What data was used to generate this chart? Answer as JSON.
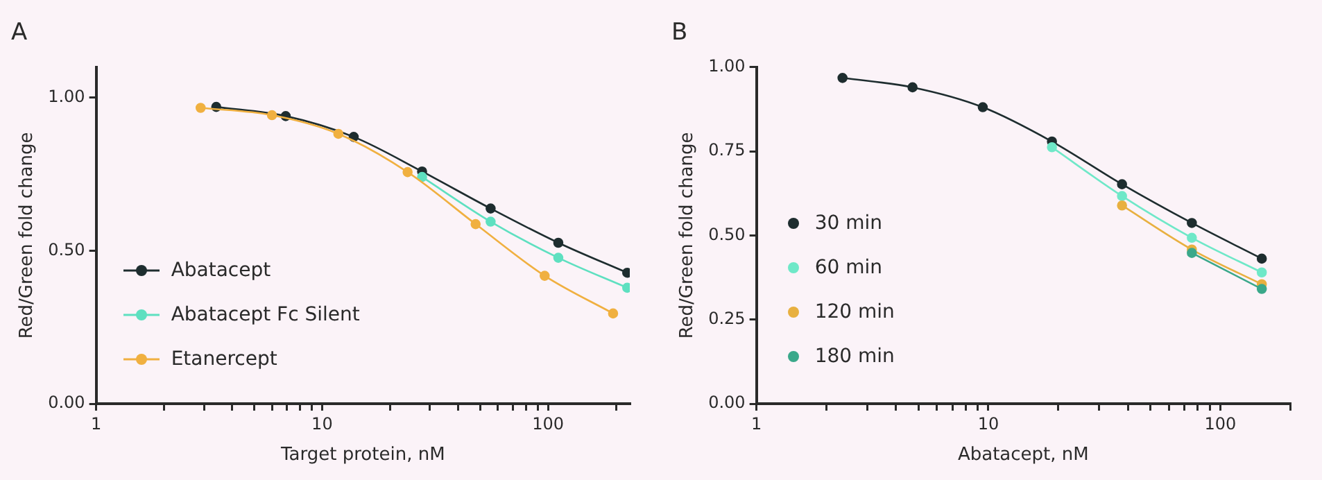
{
  "chart_data": [
    {
      "type": "line",
      "title": "A",
      "xlabel": "Target protein, nM",
      "ylabel": "Red/Green fold change",
      "log": "x",
      "x": [
        3.4,
        6.9,
        13.8,
        27.7,
        55.7,
        111,
        224
      ],
      "xlim": [
        1,
        230
      ],
      "xticks": [
        1,
        {
          "value": 2,
          "label": null
        },
        {
          "value": 3,
          "label": null
        },
        {
          "value": 4,
          "label": null
        },
        {
          "value": 5,
          "label": null
        },
        {
          "value": 6,
          "label": null
        },
        {
          "value": 7,
          "label": null
        },
        {
          "value": 8,
          "label": null
        },
        {
          "value": 9,
          "label": null
        },
        10,
        {
          "value": 20,
          "label": null
        },
        {
          "value": 30,
          "label": null
        },
        {
          "value": 40,
          "label": null
        },
        {
          "value": 50,
          "label": null
        },
        {
          "value": 60,
          "label": null
        },
        {
          "value": 70,
          "label": null
        },
        {
          "value": 80,
          "label": null
        },
        {
          "value": 90,
          "label": null
        },
        100,
        {
          "value": 200,
          "label": null
        }
      ],
      "ylim": [
        0,
        1.1
      ],
      "yticks": [
        {
          "value": 0,
          "label": "0.00"
        },
        {
          "value": 0.5,
          "label": "0.50"
        },
        {
          "value": 1,
          "label": "1.00"
        }
      ],
      "grid": false,
      "legend": "bottom left",
      "marker": "circle",
      "line_style": "solid",
      "series": [
        {
          "name": "Abatacept",
          "color": "#1e2d2f",
          "values": [
            0.97,
            0.94,
            0.872,
            0.759,
            0.638,
            0.526,
            0.428
          ]
        },
        {
          "name": "Abatacept Fc Silent",
          "color": "#5ee0c0",
          "values": [
            null,
            null,
            null,
            0.741,
            0.595,
            0.477,
            0.379
          ]
        },
        {
          "name": "Etanercept",
          "color": "#f0b040",
          "x": [
            2.9,
            6,
            11.8,
            23.9,
            47.8,
            96.6,
            194
          ],
          "values": [
            0.967,
            0.943,
            0.882,
            0.757,
            0.587,
            0.418,
            0.295
          ]
        }
      ]
    },
    {
      "type": "line",
      "title": "B",
      "xlabel": "Abatacept, nM",
      "ylabel": "Red/Green fold change",
      "log": "x",
      "x": [
        2.35,
        4.71,
        9.46,
        18.8,
        37.7,
        75.4,
        151
      ],
      "xlim": [
        1,
        200
      ],
      "xticks": [
        1,
        {
          "value": 2,
          "label": null
        },
        {
          "value": 3,
          "label": null
        },
        {
          "value": 4,
          "label": null
        },
        {
          "value": 5,
          "label": null
        },
        {
          "value": 6,
          "label": null
        },
        {
          "value": 7,
          "label": null
        },
        {
          "value": 8,
          "label": null
        },
        {
          "value": 9,
          "label": null
        },
        10,
        {
          "value": 20,
          "label": null
        },
        {
          "value": 30,
          "label": null
        },
        {
          "value": 40,
          "label": null
        },
        {
          "value": 50,
          "label": null
        },
        {
          "value": 60,
          "label": null
        },
        {
          "value": 70,
          "label": null
        },
        {
          "value": 80,
          "label": null
        },
        {
          "value": 90,
          "label": null
        },
        100,
        {
          "value": 200,
          "label": null
        }
      ],
      "ylim": [
        0,
        1
      ],
      "yticks": [
        {
          "value": 0,
          "label": "0.00"
        },
        {
          "value": 0.25,
          "label": "0.25"
        },
        {
          "value": 0.5,
          "label": "0.50"
        },
        {
          "value": 0.75,
          "label": "0.75"
        },
        {
          "value": 1,
          "label": "1.00"
        }
      ],
      "grid": false,
      "legend": "bottom left",
      "marker": "circle",
      "line_style": "solid",
      "series": [
        {
          "name": "30 min",
          "color": "#1e2d2f",
          "values": [
            0.968,
            0.94,
            0.881,
            0.779,
            0.652,
            0.537,
            0.431
          ]
        },
        {
          "name": "60 min",
          "color": "#6fe8c8",
          "values": [
            null,
            null,
            null,
            0.762,
            0.617,
            0.493,
            0.39
          ]
        },
        {
          "name": "120 min",
          "color": "#e8b040",
          "values": [
            null,
            null,
            null,
            null,
            0.589,
            0.458,
            0.355
          ]
        },
        {
          "name": "180 min",
          "color": "#3aa88a",
          "values": [
            null,
            null,
            null,
            null,
            null,
            0.448,
            0.341
          ]
        }
      ]
    }
  ]
}
